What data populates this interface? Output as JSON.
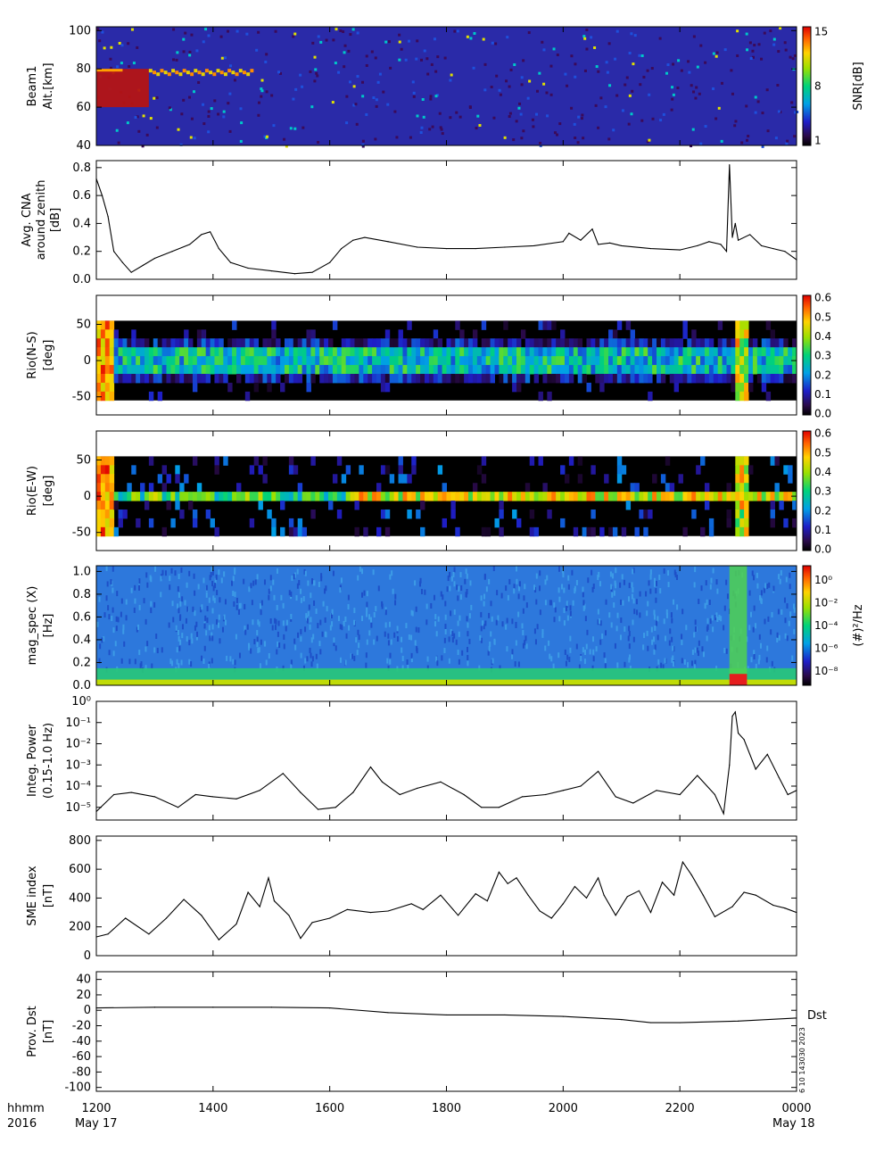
{
  "figure": {
    "time_label_row1": "hhmm",
    "time_label_row2": "2016",
    "x_ticks": [
      "1200",
      "1400",
      "1600",
      "1800",
      "2000",
      "2200",
      "0000"
    ],
    "x_tick_hours": [
      12,
      14,
      16,
      18,
      20,
      22,
      24
    ],
    "date_start": "May 17",
    "date_end": "May 18",
    "x_range_hours": [
      12,
      24
    ],
    "side_stamp": "6 10 143030 2023",
    "dst_tag": "Dst"
  },
  "chart_data": [
    {
      "id": "beam1",
      "type": "heatmap",
      "ylabel": [
        "Beam1",
        "Alt.[km]"
      ],
      "yticks": [
        40,
        60,
        80,
        100
      ],
      "ylim": [
        40,
        102
      ],
      "colorbar": {
        "label": "SNR[dB]",
        "ticks": [
          "1",
          "8",
          "15"
        ],
        "range": [
          1,
          15
        ],
        "colormap": "rainbow"
      },
      "features": [
        {
          "description": "strong echoes",
          "time_hours": [
            12.0,
            12.9
          ],
          "alt_km": [
            60,
            80
          ]
        },
        {
          "description": "patchy echoes",
          "time_hours": [
            12.9,
            14.7
          ],
          "alt_km": [
            72,
            80
          ]
        }
      ]
    },
    {
      "id": "cna",
      "type": "line",
      "ylabel": [
        "Avg. CNA",
        "around zenith",
        "[dB]"
      ],
      "yticks": [
        "0.0",
        "0.2",
        "0.4",
        "0.6",
        "0.8"
      ],
      "ylim": [
        0,
        0.85
      ],
      "x": [
        12.0,
        12.1,
        12.2,
        12.3,
        12.45,
        12.6,
        12.8,
        13.0,
        13.3,
        13.6,
        13.8,
        13.95,
        14.1,
        14.3,
        14.6,
        15.0,
        15.4,
        15.7,
        16.0,
        16.2,
        16.4,
        16.6,
        17.0,
        17.5,
        18.0,
        18.5,
        19.0,
        19.5,
        20.0,
        20.1,
        20.3,
        20.5,
        20.6,
        20.8,
        21.0,
        21.5,
        22.0,
        22.3,
        22.5,
        22.7,
        22.8,
        22.85,
        22.9,
        22.95,
        23.0,
        23.2,
        23.4,
        23.6,
        23.8,
        24.0
      ],
      "values": [
        0.72,
        0.6,
        0.45,
        0.2,
        0.12,
        0.05,
        0.1,
        0.15,
        0.2,
        0.25,
        0.32,
        0.34,
        0.22,
        0.12,
        0.08,
        0.06,
        0.04,
        0.05,
        0.12,
        0.22,
        0.28,
        0.3,
        0.27,
        0.23,
        0.22,
        0.22,
        0.23,
        0.24,
        0.27,
        0.33,
        0.28,
        0.36,
        0.25,
        0.26,
        0.24,
        0.22,
        0.21,
        0.24,
        0.27,
        0.25,
        0.2,
        0.82,
        0.3,
        0.4,
        0.28,
        0.32,
        0.24,
        0.22,
        0.2,
        0.14
      ]
    },
    {
      "id": "rio_ns",
      "type": "heatmap",
      "ylabel": [
        "Rio(N-S)",
        "[deg]"
      ],
      "yticks": [
        -50,
        0,
        50
      ],
      "ylim": [
        -75,
        90
      ],
      "colorbar": {
        "ticks": [
          "0.0",
          "0.1",
          "0.2",
          "0.3",
          "0.4",
          "0.5",
          "0.6"
        ],
        "range": [
          0,
          0.6
        ],
        "colormap": "rainbow"
      }
    },
    {
      "id": "rio_ew",
      "type": "heatmap",
      "ylabel": [
        "Rio(E-W)",
        "[deg]"
      ],
      "yticks": [
        -50,
        0,
        50
      ],
      "ylim": [
        -75,
        90
      ],
      "colorbar": {
        "ticks": [
          "0.0",
          "0.1",
          "0.2",
          "0.3",
          "0.4",
          "0.5",
          "0.6"
        ],
        "range": [
          0,
          0.6
        ],
        "colormap": "rainbow"
      }
    },
    {
      "id": "mag_spec",
      "type": "heatmap",
      "ylabel": [
        "mag_spec (X)",
        "[Hz]"
      ],
      "yticks": [
        "0.0",
        "0.2",
        "0.4",
        "0.6",
        "0.8",
        "1.0"
      ],
      "ylim": [
        0,
        1.05
      ],
      "colorbar": {
        "label": "(#)²/Hz",
        "ticks": [
          "10⁰",
          "10⁻²",
          "10⁻⁴",
          "10⁻⁶",
          "10⁻⁸"
        ],
        "range_log10": [
          -9,
          1
        ],
        "colormap": "rainbow"
      }
    },
    {
      "id": "integ_power",
      "type": "line",
      "ylabel": [
        "Integ. Power",
        "(0.15-1.0 Hz)"
      ],
      "yticks": [
        "10⁻⁵",
        "10⁻⁴",
        "10⁻³",
        "10⁻²",
        "10⁻¹",
        "10⁰"
      ],
      "yscale": "log",
      "ylim_log10": [
        -5.6,
        0
      ],
      "x": [
        12.0,
        12.3,
        12.6,
        13.0,
        13.4,
        13.7,
        14.0,
        14.4,
        14.8,
        15.2,
        15.5,
        15.8,
        16.1,
        16.4,
        16.7,
        16.9,
        17.2,
        17.5,
        17.9,
        18.3,
        18.6,
        18.9,
        19.3,
        19.7,
        20.0,
        20.3,
        20.6,
        20.9,
        21.2,
        21.6,
        22.0,
        22.3,
        22.6,
        22.75,
        22.85,
        22.9,
        22.95,
        23.0,
        23.1,
        23.3,
        23.5,
        23.7,
        23.85,
        24.0
      ],
      "log10_values": [
        -5.2,
        -4.4,
        -4.3,
        -4.5,
        -5.0,
        -4.4,
        -4.5,
        -4.6,
        -4.2,
        -3.4,
        -4.3,
        -5.1,
        -5.0,
        -4.3,
        -3.1,
        -3.8,
        -4.4,
        -4.1,
        -3.8,
        -4.4,
        -5.0,
        -5.0,
        -4.5,
        -4.4,
        -4.2,
        -4.0,
        -3.3,
        -4.5,
        -4.8,
        -4.2,
        -4.4,
        -3.5,
        -4.4,
        -5.3,
        -3.0,
        -0.7,
        -0.5,
        -1.5,
        -1.8,
        -3.2,
        -2.5,
        -3.6,
        -4.4,
        -4.2
      ]
    },
    {
      "id": "sme",
      "type": "line",
      "ylabel": [
        "SME index",
        "[nT]"
      ],
      "yticks": [
        0,
        200,
        400,
        600,
        800
      ],
      "ylim": [
        0,
        830
      ],
      "x": [
        12.0,
        12.2,
        12.5,
        12.9,
        13.2,
        13.5,
        13.8,
        14.1,
        14.4,
        14.6,
        14.8,
        14.95,
        15.05,
        15.3,
        15.5,
        15.7,
        16.0,
        16.3,
        16.7,
        17.0,
        17.4,
        17.6,
        17.9,
        18.2,
        18.5,
        18.7,
        18.9,
        19.05,
        19.2,
        19.4,
        19.6,
        19.8,
        20.0,
        20.2,
        20.4,
        20.6,
        20.7,
        20.9,
        21.1,
        21.3,
        21.5,
        21.7,
        21.9,
        22.05,
        22.2,
        22.4,
        22.6,
        22.9,
        23.1,
        23.3,
        23.6,
        23.8,
        24.0
      ],
      "values": [
        130,
        150,
        260,
        150,
        260,
        390,
        280,
        110,
        220,
        440,
        340,
        540,
        380,
        280,
        120,
        230,
        260,
        320,
        300,
        310,
        360,
        320,
        420,
        280,
        430,
        380,
        580,
        500,
        540,
        420,
        310,
        260,
        360,
        480,
        400,
        540,
        420,
        280,
        410,
        450,
        300,
        510,
        420,
        650,
        560,
        420,
        270,
        340,
        440,
        420,
        350,
        330,
        300
      ]
    },
    {
      "id": "dst",
      "type": "line",
      "ylabel": [
        "Prov. Dst",
        "[nT]"
      ],
      "yticks": [
        40,
        20,
        0,
        -20,
        -40,
        -60,
        -80,
        -100
      ],
      "ylim": [
        -105,
        50
      ],
      "series_label": "Dst",
      "x": [
        12,
        13,
        14,
        15,
        16,
        17,
        18,
        19,
        20,
        21,
        21.5,
        22,
        23,
        24
      ],
      "values": [
        3,
        4,
        4,
        4,
        3,
        -3,
        -6,
        -6,
        -8,
        -12,
        -16,
        -16,
        -14,
        -10
      ]
    }
  ]
}
